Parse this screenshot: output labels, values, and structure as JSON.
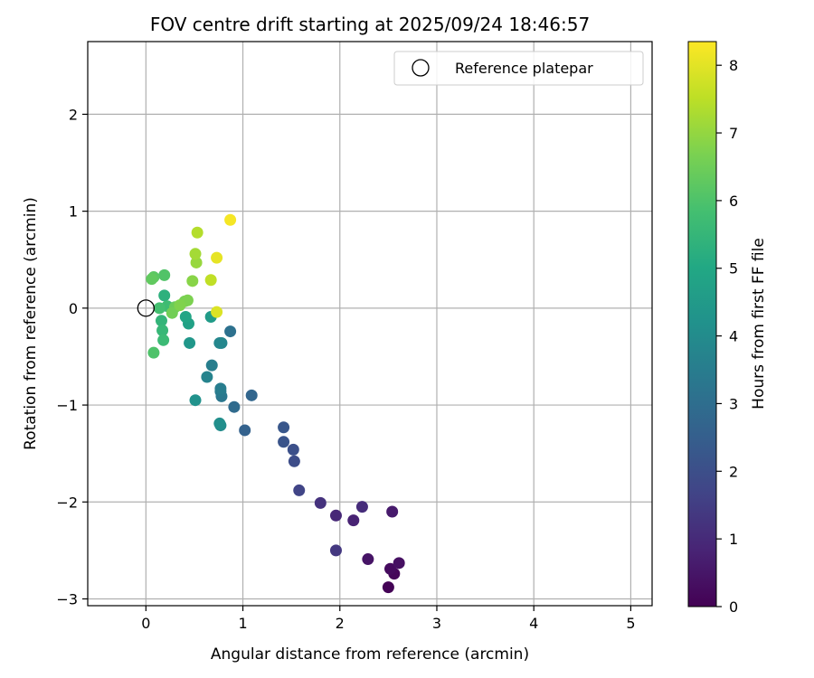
{
  "chart_data": {
    "type": "scatter",
    "title": "FOV centre drift starting at 2025/09/24 18:46:57",
    "xlabel": "Angular distance from reference (arcmin)",
    "ylabel": "Rotation from reference (arcmin)",
    "xlim": [
      -0.6,
      5.22
    ],
    "ylim": [
      -3.07,
      2.75
    ],
    "xticks": [
      0,
      1,
      2,
      3,
      4,
      5
    ],
    "xtick_labels": [
      "0",
      "1",
      "2",
      "3",
      "4",
      "5"
    ],
    "yticks": [
      -3,
      -2,
      -1,
      0,
      1,
      2
    ],
    "ytick_labels": [
      "−3",
      "−2",
      "−1",
      "0",
      "1",
      "2"
    ],
    "grid": true,
    "legend": {
      "location": "upper-right",
      "label": "Reference platepar"
    },
    "reference_point": {
      "x": 0,
      "y": 0
    },
    "colorbar": {
      "label": "Hours from first FF file",
      "colormap": "viridis",
      "min": 0,
      "max": 8.35,
      "ticks": [
        0,
        1,
        2,
        3,
        4,
        5,
        6,
        7,
        8
      ],
      "tick_labels": [
        "0",
        "1",
        "2",
        "3",
        "4",
        "5",
        "6",
        "7",
        "8"
      ]
    },
    "points": [
      {
        "x": 2.5,
        "y": -2.88,
        "hours": 0.05
      },
      {
        "x": 2.56,
        "y": -2.74,
        "hours": 0.15
      },
      {
        "x": 2.52,
        "y": -2.69,
        "hours": 0.25
      },
      {
        "x": 2.61,
        "y": -2.63,
        "hours": 0.35
      },
      {
        "x": 2.29,
        "y": -2.59,
        "hours": 0.45
      },
      {
        "x": 2.54,
        "y": -2.1,
        "hours": 0.6
      },
      {
        "x": 2.14,
        "y": -2.19,
        "hours": 0.8
      },
      {
        "x": 1.96,
        "y": -2.14,
        "hours": 0.95
      },
      {
        "x": 2.23,
        "y": -2.05,
        "hours": 1.05
      },
      {
        "x": 1.8,
        "y": -2.01,
        "hours": 1.2
      },
      {
        "x": 1.96,
        "y": -2.5,
        "hours": 1.35
      },
      {
        "x": 1.58,
        "y": -1.88,
        "hours": 1.7
      },
      {
        "x": 1.53,
        "y": -1.58,
        "hours": 1.95
      },
      {
        "x": 1.52,
        "y": -1.46,
        "hours": 2.05
      },
      {
        "x": 1.42,
        "y": -1.38,
        "hours": 2.15
      },
      {
        "x": 1.42,
        "y": -1.23,
        "hours": 2.25
      },
      {
        "x": 1.02,
        "y": -1.26,
        "hours": 2.6
      },
      {
        "x": 1.09,
        "y": -0.9,
        "hours": 2.75
      },
      {
        "x": 0.91,
        "y": -1.02,
        "hours": 2.9
      },
      {
        "x": 0.87,
        "y": -0.24,
        "hours": 3.1
      },
      {
        "x": 0.78,
        "y": -0.91,
        "hours": 3.3
      },
      {
        "x": 0.77,
        "y": -0.86,
        "hours": 3.4
      },
      {
        "x": 0.77,
        "y": -0.83,
        "hours": 3.5
      },
      {
        "x": 0.68,
        "y": -0.59,
        "hours": 3.55
      },
      {
        "x": 0.63,
        "y": -0.71,
        "hours": 3.7
      },
      {
        "x": 0.78,
        "y": -0.36,
        "hours": 3.8
      },
      {
        "x": 0.76,
        "y": -0.36,
        "hours": 3.85
      },
      {
        "x": 0.77,
        "y": -1.21,
        "hours": 4.0
      },
      {
        "x": 0.76,
        "y": -1.19,
        "hours": 4.1
      },
      {
        "x": 0.51,
        "y": -0.95,
        "hours": 4.2
      },
      {
        "x": 0.45,
        "y": -0.36,
        "hours": 4.4
      },
      {
        "x": 0.67,
        "y": -0.09,
        "hours": 4.55
      },
      {
        "x": 0.44,
        "y": -0.16,
        "hours": 4.75
      },
      {
        "x": 0.41,
        "y": -0.09,
        "hours": 4.9
      },
      {
        "x": 0.19,
        "y": 0.13,
        "hours": 5.3
      },
      {
        "x": 0.16,
        "y": -0.13,
        "hours": 5.45
      },
      {
        "x": 0.17,
        "y": -0.23,
        "hours": 5.55
      },
      {
        "x": 0.18,
        "y": -0.33,
        "hours": 5.65
      },
      {
        "x": 0.22,
        "y": 0.02,
        "hours": 5.7
      },
      {
        "x": 0.14,
        "y": 0.0,
        "hours": 5.85
      },
      {
        "x": 0.08,
        "y": -0.46,
        "hours": 6.0
      },
      {
        "x": 0.19,
        "y": 0.34,
        "hours": 6.05
      },
      {
        "x": 0.08,
        "y": 0.32,
        "hours": 6.2
      },
      {
        "x": 0.06,
        "y": 0.3,
        "hours": 6.3
      },
      {
        "x": 0.3,
        "y": 0.01,
        "hours": 6.45
      },
      {
        "x": 0.27,
        "y": -0.05,
        "hours": 6.55
      },
      {
        "x": 0.4,
        "y": 0.07,
        "hours": 6.6
      },
      {
        "x": 0.43,
        "y": 0.08,
        "hours": 6.7
      },
      {
        "x": 0.35,
        "y": 0.03,
        "hours": 6.75
      },
      {
        "x": 0.48,
        "y": 0.28,
        "hours": 6.85
      },
      {
        "x": 0.52,
        "y": 0.47,
        "hours": 7.05
      },
      {
        "x": 0.51,
        "y": 0.56,
        "hours": 7.2
      },
      {
        "x": 0.53,
        "y": 0.78,
        "hours": 7.4
      },
      {
        "x": 0.67,
        "y": 0.29,
        "hours": 7.55
      },
      {
        "x": 0.73,
        "y": -0.04,
        "hours": 7.9
      },
      {
        "x": 0.73,
        "y": 0.52,
        "hours": 8.05
      },
      {
        "x": 0.87,
        "y": 0.91,
        "hours": 8.25
      }
    ]
  }
}
